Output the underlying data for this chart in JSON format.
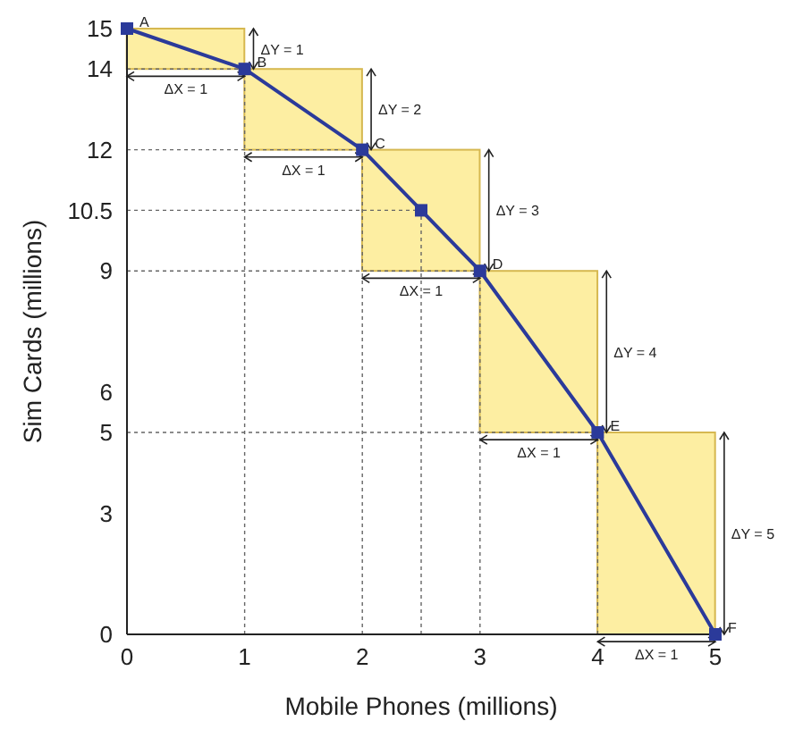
{
  "chart_data": {
    "type": "line",
    "xlabel": "Mobile Phones (millions)",
    "ylabel": "Sim Cards (millions)",
    "x": [
      0,
      1,
      2,
      2.5,
      3,
      4,
      5
    ],
    "series": [
      {
        "type": "bar",
        "color": "#fdeea2",
        "x": [
          0.5,
          1.5,
          2.5,
          3.5,
          4.5
        ],
        "base": [
          14,
          12,
          9,
          5,
          0
        ],
        "values": [
          1,
          2,
          3,
          4,
          5
        ]
      },
      {
        "color": "#2b3a9a",
        "values": [
          15,
          14,
          12,
          10.5,
          9,
          5,
          0
        ]
      }
    ],
    "xlim": [
      0,
      5
    ],
    "xticks": [
      0,
      1,
      2,
      3,
      4,
      5
    ],
    "ylim": [
      0,
      15
    ],
    "yticks": [
      0,
      3,
      5,
      6,
      9,
      10.5,
      12,
      14,
      15
    ],
    "marker": "square",
    "line_style": "solid",
    "legend": false,
    "ref_lines": [
      {
        "axis": "x",
        "value": 1,
        "line_style": "dashed"
      },
      {
        "axis": "x",
        "value": 2,
        "line_style": "dashed"
      },
      {
        "axis": "x",
        "value": 2.5,
        "line_style": "dashed"
      },
      {
        "axis": "x",
        "value": 3,
        "line_style": "dashed"
      },
      {
        "axis": "x",
        "value": 4,
        "line_style": "dashed"
      },
      {
        "axis": "y",
        "value": 14,
        "line_style": "dashed"
      },
      {
        "axis": "y",
        "value": 12,
        "line_style": "dashed"
      },
      {
        "axis": "y",
        "value": 10.5,
        "line_style": "dashed"
      },
      {
        "axis": "y",
        "value": 9,
        "line_style": "dashed"
      },
      {
        "axis": "y",
        "value": 5,
        "line_style": "dashed"
      }
    ],
    "annotations": [
      {
        "text": "A",
        "x": 0,
        "y": 15
      },
      {
        "text": "B",
        "x": 1,
        "y": 14
      },
      {
        "text": "C",
        "x": 2,
        "y": 12
      },
      {
        "text": "D",
        "x": 3,
        "y": 9
      },
      {
        "text": "E",
        "x": 4,
        "y": 5
      },
      {
        "text": "F",
        "x": 5,
        "y": 0
      },
      "ΔX = 1",
      "ΔX = 1",
      "ΔX = 1",
      "ΔX = 1",
      "ΔX = 1",
      "ΔY = 1",
      "ΔY = 2",
      "ΔY = 3",
      "ΔY = 4",
      "ΔY = 5"
    ]
  }
}
